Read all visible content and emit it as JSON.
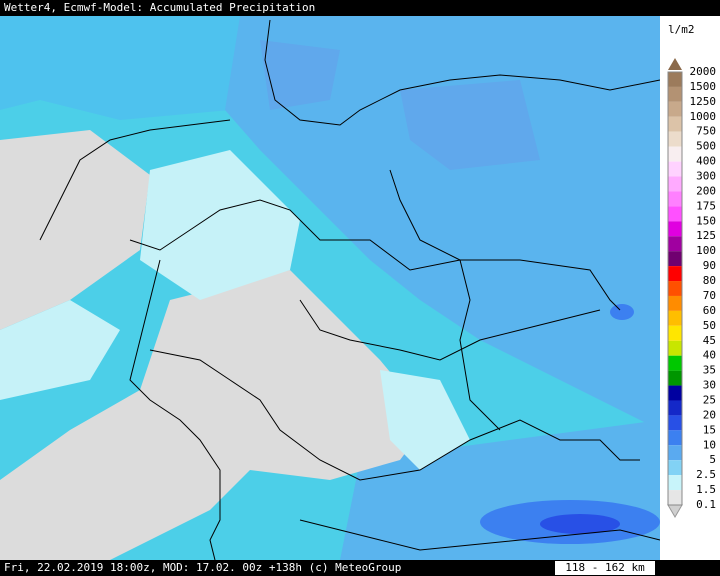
{
  "header": {
    "title": "Wetter4, Ecmwf-Model: Accumulated Precipitation"
  },
  "legend": {
    "unit": "l/m2",
    "labels": [
      "2000",
      "1500",
      "1250",
      "1000",
      "750",
      "500",
      "400",
      "300",
      "200",
      "175",
      "150",
      "125",
      "100",
      "90",
      "80",
      "70",
      "60",
      "50",
      "45",
      "40",
      "35",
      "30",
      "25",
      "20",
      "15",
      "10",
      "5",
      "2.5",
      "1.5",
      "0.1"
    ],
    "colors": [
      "#9c7b5c",
      "#b39273",
      "#c8a98b",
      "#dcc3a8",
      "#ecdccb",
      "#f8eef0",
      "#ffd2ff",
      "#ffaaff",
      "#ff80ff",
      "#ff50ff",
      "#e000e0",
      "#a000a0",
      "#700070",
      "#ff0000",
      "#ff5000",
      "#ff8c00",
      "#ffbe00",
      "#ffe600",
      "#c8e600",
      "#00c800",
      "#009600",
      "#0000a0",
      "#1428c8",
      "#2850e6",
      "#3c80f0",
      "#5aaaf0",
      "#82d2f5",
      "#c8f4fa",
      "#e6e6e6"
    ]
  },
  "footer": {
    "text": "Fri, 22.02.2019 18:00z, MOD: 17.02. 00z +138h (c) MeteoGroup",
    "scale": "118 - 162 km"
  }
}
